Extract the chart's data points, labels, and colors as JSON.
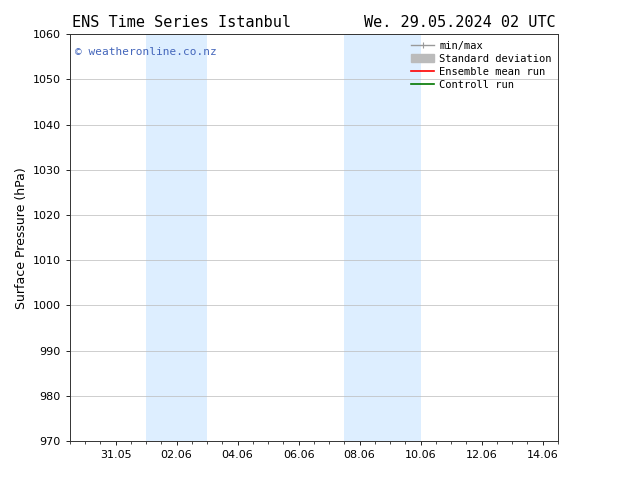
{
  "title_left": "ENS Time Series Istanbul",
  "title_right": "We. 29.05.2024 02 UTC",
  "ylabel": "Surface Pressure (hPa)",
  "ylim": [
    970,
    1060
  ],
  "yticks": [
    970,
    980,
    990,
    1000,
    1010,
    1020,
    1030,
    1040,
    1050,
    1060
  ],
  "xtick_labels": [
    "31.05",
    "02.06",
    "04.06",
    "06.06",
    "08.06",
    "10.06",
    "12.06",
    "14.06"
  ],
  "xtick_positions": [
    2,
    4,
    6,
    8,
    10,
    12,
    14,
    16
  ],
  "xlim": [
    0.5,
    16.5
  ],
  "shaded_bands": [
    {
      "x_start": 3.0,
      "x_end": 5.0
    },
    {
      "x_start": 9.5,
      "x_end": 12.0
    }
  ],
  "shaded_color": "#ddeeff",
  "background_color": "#ffffff",
  "grid_color": "#bbbbbb",
  "watermark_text": "© weatheronline.co.nz",
  "watermark_color": "#4466bb",
  "legend_items": [
    {
      "label": "min/max",
      "color": "#999999",
      "lw": 1.0
    },
    {
      "label": "Standard deviation",
      "color": "#bbbbbb",
      "lw": 5
    },
    {
      "label": "Ensemble mean run",
      "color": "#ff0000",
      "lw": 1.2
    },
    {
      "label": "Controll run",
      "color": "#007700",
      "lw": 1.2
    }
  ],
  "title_fontsize": 11,
  "axis_label_fontsize": 9,
  "tick_fontsize": 8,
  "legend_fontsize": 7.5,
  "watermark_fontsize": 8
}
